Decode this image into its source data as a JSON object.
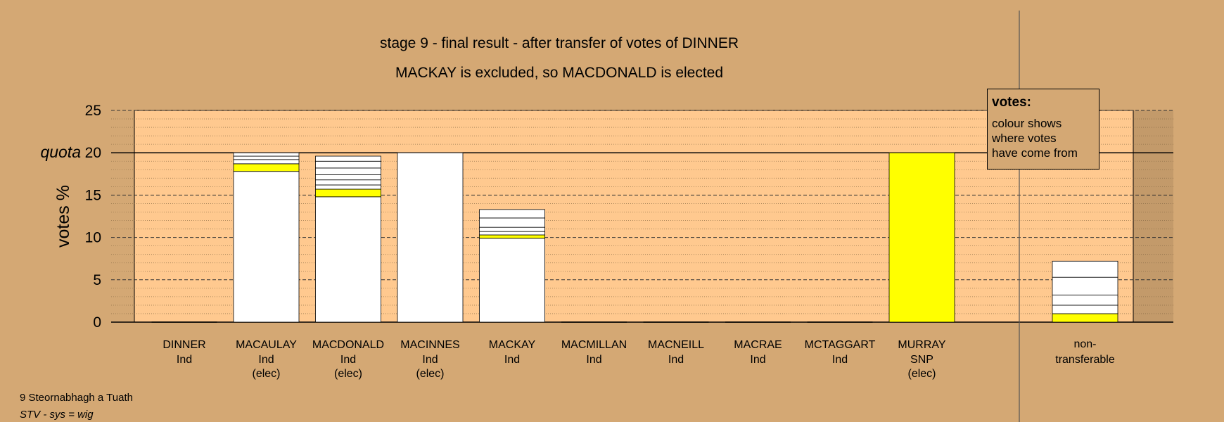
{
  "title": "stage 9 - final result - after transfer of votes of DINNER",
  "subtitle": "MACKAY is excluded, so MACDONALD is elected",
  "legend": {
    "title": "votes:",
    "lines": [
      "colour shows",
      "where votes",
      "have come from"
    ]
  },
  "footer": {
    "ward": "9 Steornabhagh a Tuath",
    "system": "STV - sys = wig"
  },
  "colors": {
    "background": "#d4a874",
    "plot_background": "#ffc98f",
    "snp_yellow": "#ffff00",
    "bar_white": "#ffffff"
  },
  "chart_data": {
    "type": "bar",
    "stacked": true,
    "ylabel": "votes %",
    "ylim": [
      0,
      25
    ],
    "yticks": [
      0,
      5,
      10,
      15,
      20,
      25
    ],
    "quota": 20,
    "quota_label": "quota",
    "grid": "dashed major every 5, dotted minor every 1",
    "legend_placement": "top-right",
    "categories": [
      {
        "name": "DINNER",
        "party": "Ind",
        "status": ""
      },
      {
        "name": "MACAULAY",
        "party": "Ind",
        "status": "(elec)"
      },
      {
        "name": "MACDONALD",
        "party": "Ind",
        "status": "(elec)"
      },
      {
        "name": "MACINNES",
        "party": "Ind",
        "status": "(elec)"
      },
      {
        "name": "MACKAY",
        "party": "Ind",
        "status": ""
      },
      {
        "name": "MACMILLAN",
        "party": "Ind",
        "status": ""
      },
      {
        "name": "MACNEILL",
        "party": "Ind",
        "status": ""
      },
      {
        "name": "MACRAE",
        "party": "Ind",
        "status": ""
      },
      {
        "name": "MCTAGGART",
        "party": "Ind",
        "status": ""
      },
      {
        "name": "MURRAY",
        "party": "SNP",
        "status": "(elec)"
      }
    ],
    "nontransferable_label": [
      "non-",
      "transferable"
    ],
    "segments": [
      [],
      [
        {
          "value": 17.8,
          "color": "#ffffff"
        },
        {
          "value": 0.9,
          "color": "#ffff00"
        },
        {
          "value": 0.5,
          "color": "#ffffff"
        },
        {
          "value": 0.4,
          "color": "#ffffff"
        },
        {
          "value": 0.4,
          "color": "#ffffff"
        }
      ],
      [
        {
          "value": 14.8,
          "color": "#ffffff"
        },
        {
          "value": 0.9,
          "color": "#ffff00"
        },
        {
          "value": 0.5,
          "color": "#ffffff"
        },
        {
          "value": 0.6,
          "color": "#ffffff"
        },
        {
          "value": 0.6,
          "color": "#ffffff"
        },
        {
          "value": 0.8,
          "color": "#ffffff"
        },
        {
          "value": 0.8,
          "color": "#ffffff"
        },
        {
          "value": 0.6,
          "color": "#ffffff"
        }
      ],
      [
        {
          "value": 20.0,
          "color": "#ffffff"
        }
      ],
      [
        {
          "value": 9.9,
          "color": "#ffffff"
        },
        {
          "value": 0.4,
          "color": "#ffff00"
        },
        {
          "value": 0.4,
          "color": "#ffffff"
        },
        {
          "value": 0.5,
          "color": "#ffffff"
        },
        {
          "value": 1.1,
          "color": "#ffffff"
        },
        {
          "value": 1.0,
          "color": "#ffffff"
        }
      ],
      [],
      [],
      [],
      [],
      [
        {
          "value": 20.0,
          "color": "#ffff00"
        }
      ]
    ],
    "nontransferable_segments": [
      {
        "value": 1.0,
        "color": "#ffff00"
      },
      {
        "value": 1.0,
        "color": "#ffffff"
      },
      {
        "value": 1.2,
        "color": "#ffffff"
      },
      {
        "value": 2.1,
        "color": "#ffffff"
      },
      {
        "value": 1.9,
        "color": "#ffffff"
      }
    ]
  }
}
